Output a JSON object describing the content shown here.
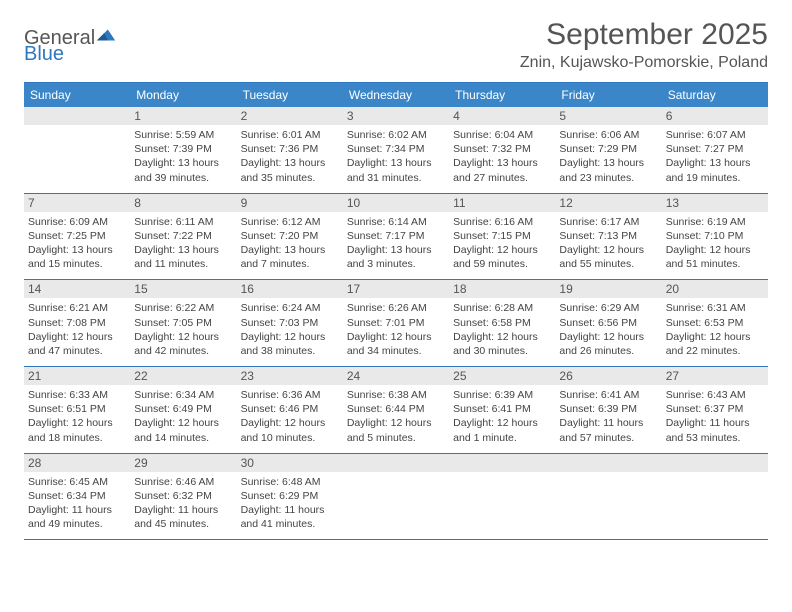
{
  "logo": {
    "word1": "General",
    "word2": "Blue"
  },
  "title": "September 2025",
  "location": "Znin, Kujawsko-Pomorskie, Poland",
  "colors": {
    "header_bg": "#3b86c8",
    "header_text": "#ffffff",
    "rule": "#2f78bf",
    "daynum_bg": "#e9e9e9",
    "text": "#444444",
    "title_text": "#555555",
    "background": "#ffffff"
  },
  "typography": {
    "title_fontsize": 30,
    "location_fontsize": 16,
    "header_fontsize": 12,
    "body_fontsize": 10.5
  },
  "day_headers": [
    "Sunday",
    "Monday",
    "Tuesday",
    "Wednesday",
    "Thursday",
    "Friday",
    "Saturday"
  ],
  "weeks": [
    [
      {
        "n": "",
        "sr": "",
        "ss": "",
        "dl": ""
      },
      {
        "n": "1",
        "sr": "Sunrise: 5:59 AM",
        "ss": "Sunset: 7:39 PM",
        "dl": "Daylight: 13 hours and 39 minutes."
      },
      {
        "n": "2",
        "sr": "Sunrise: 6:01 AM",
        "ss": "Sunset: 7:36 PM",
        "dl": "Daylight: 13 hours and 35 minutes."
      },
      {
        "n": "3",
        "sr": "Sunrise: 6:02 AM",
        "ss": "Sunset: 7:34 PM",
        "dl": "Daylight: 13 hours and 31 minutes."
      },
      {
        "n": "4",
        "sr": "Sunrise: 6:04 AM",
        "ss": "Sunset: 7:32 PM",
        "dl": "Daylight: 13 hours and 27 minutes."
      },
      {
        "n": "5",
        "sr": "Sunrise: 6:06 AM",
        "ss": "Sunset: 7:29 PM",
        "dl": "Daylight: 13 hours and 23 minutes."
      },
      {
        "n": "6",
        "sr": "Sunrise: 6:07 AM",
        "ss": "Sunset: 7:27 PM",
        "dl": "Daylight: 13 hours and 19 minutes."
      }
    ],
    [
      {
        "n": "7",
        "sr": "Sunrise: 6:09 AM",
        "ss": "Sunset: 7:25 PM",
        "dl": "Daylight: 13 hours and 15 minutes."
      },
      {
        "n": "8",
        "sr": "Sunrise: 6:11 AM",
        "ss": "Sunset: 7:22 PM",
        "dl": "Daylight: 13 hours and 11 minutes."
      },
      {
        "n": "9",
        "sr": "Sunrise: 6:12 AM",
        "ss": "Sunset: 7:20 PM",
        "dl": "Daylight: 13 hours and 7 minutes."
      },
      {
        "n": "10",
        "sr": "Sunrise: 6:14 AM",
        "ss": "Sunset: 7:17 PM",
        "dl": "Daylight: 13 hours and 3 minutes."
      },
      {
        "n": "11",
        "sr": "Sunrise: 6:16 AM",
        "ss": "Sunset: 7:15 PM",
        "dl": "Daylight: 12 hours and 59 minutes."
      },
      {
        "n": "12",
        "sr": "Sunrise: 6:17 AM",
        "ss": "Sunset: 7:13 PM",
        "dl": "Daylight: 12 hours and 55 minutes."
      },
      {
        "n": "13",
        "sr": "Sunrise: 6:19 AM",
        "ss": "Sunset: 7:10 PM",
        "dl": "Daylight: 12 hours and 51 minutes."
      }
    ],
    [
      {
        "n": "14",
        "sr": "Sunrise: 6:21 AM",
        "ss": "Sunset: 7:08 PM",
        "dl": "Daylight: 12 hours and 47 minutes."
      },
      {
        "n": "15",
        "sr": "Sunrise: 6:22 AM",
        "ss": "Sunset: 7:05 PM",
        "dl": "Daylight: 12 hours and 42 minutes."
      },
      {
        "n": "16",
        "sr": "Sunrise: 6:24 AM",
        "ss": "Sunset: 7:03 PM",
        "dl": "Daylight: 12 hours and 38 minutes."
      },
      {
        "n": "17",
        "sr": "Sunrise: 6:26 AM",
        "ss": "Sunset: 7:01 PM",
        "dl": "Daylight: 12 hours and 34 minutes."
      },
      {
        "n": "18",
        "sr": "Sunrise: 6:28 AM",
        "ss": "Sunset: 6:58 PM",
        "dl": "Daylight: 12 hours and 30 minutes."
      },
      {
        "n": "19",
        "sr": "Sunrise: 6:29 AM",
        "ss": "Sunset: 6:56 PM",
        "dl": "Daylight: 12 hours and 26 minutes."
      },
      {
        "n": "20",
        "sr": "Sunrise: 6:31 AM",
        "ss": "Sunset: 6:53 PM",
        "dl": "Daylight: 12 hours and 22 minutes."
      }
    ],
    [
      {
        "n": "21",
        "sr": "Sunrise: 6:33 AM",
        "ss": "Sunset: 6:51 PM",
        "dl": "Daylight: 12 hours and 18 minutes."
      },
      {
        "n": "22",
        "sr": "Sunrise: 6:34 AM",
        "ss": "Sunset: 6:49 PM",
        "dl": "Daylight: 12 hours and 14 minutes."
      },
      {
        "n": "23",
        "sr": "Sunrise: 6:36 AM",
        "ss": "Sunset: 6:46 PM",
        "dl": "Daylight: 12 hours and 10 minutes."
      },
      {
        "n": "24",
        "sr": "Sunrise: 6:38 AM",
        "ss": "Sunset: 6:44 PM",
        "dl": "Daylight: 12 hours and 5 minutes."
      },
      {
        "n": "25",
        "sr": "Sunrise: 6:39 AM",
        "ss": "Sunset: 6:41 PM",
        "dl": "Daylight: 12 hours and 1 minute."
      },
      {
        "n": "26",
        "sr": "Sunrise: 6:41 AM",
        "ss": "Sunset: 6:39 PM",
        "dl": "Daylight: 11 hours and 57 minutes."
      },
      {
        "n": "27",
        "sr": "Sunrise: 6:43 AM",
        "ss": "Sunset: 6:37 PM",
        "dl": "Daylight: 11 hours and 53 minutes."
      }
    ],
    [
      {
        "n": "28",
        "sr": "Sunrise: 6:45 AM",
        "ss": "Sunset: 6:34 PM",
        "dl": "Daylight: 11 hours and 49 minutes."
      },
      {
        "n": "29",
        "sr": "Sunrise: 6:46 AM",
        "ss": "Sunset: 6:32 PM",
        "dl": "Daylight: 11 hours and 45 minutes."
      },
      {
        "n": "30",
        "sr": "Sunrise: 6:48 AM",
        "ss": "Sunset: 6:29 PM",
        "dl": "Daylight: 11 hours and 41 minutes."
      },
      {
        "n": "",
        "sr": "",
        "ss": "",
        "dl": ""
      },
      {
        "n": "",
        "sr": "",
        "ss": "",
        "dl": ""
      },
      {
        "n": "",
        "sr": "",
        "ss": "",
        "dl": ""
      },
      {
        "n": "",
        "sr": "",
        "ss": "",
        "dl": ""
      }
    ]
  ]
}
